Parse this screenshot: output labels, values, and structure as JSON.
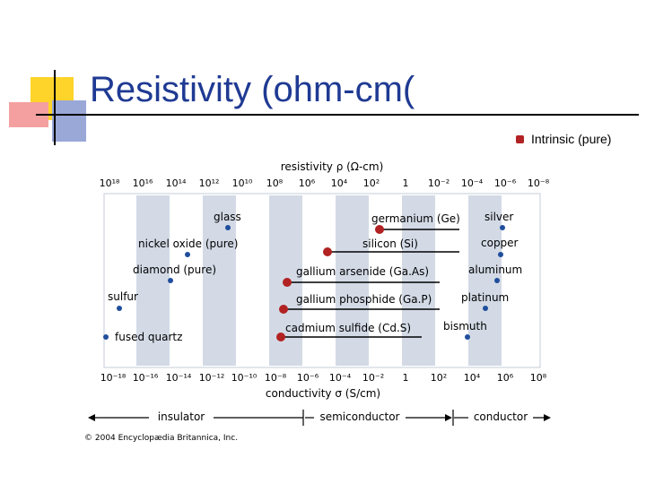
{
  "slide": {
    "title": "Resistivity (ohm-cm(",
    "bullet": "Intrinsic (pure)"
  },
  "figure": {
    "top_label": "resistivity ρ (Ω-cm)",
    "bottom_label": "conductivity σ (S/cm)",
    "top_ticks": [
      "10¹⁸",
      "10¹⁶",
      "10¹⁴",
      "10¹²",
      "10¹⁰",
      "10⁸",
      "10⁶",
      "10⁴",
      "10²",
      "1",
      "10⁻²",
      "10⁻⁴",
      "10⁻⁶",
      "10⁻⁸"
    ],
    "bottom_ticks": [
      "10⁻¹⁸",
      "10⁻¹⁶",
      "10⁻¹⁴",
      "10⁻¹²",
      "10⁻¹⁰",
      "10⁻⁸",
      "10⁻⁶",
      "10⁻⁴",
      "10⁻²",
      "1",
      "10²",
      "10⁴",
      "10⁶",
      "10⁸"
    ],
    "materials": [
      {
        "name": "glass",
        "type": "dot"
      },
      {
        "name": "nickel oxide (pure)",
        "type": "dot"
      },
      {
        "name": "diamond (pure)",
        "type": "dot"
      },
      {
        "name": "sulfur",
        "type": "dot"
      },
      {
        "name": "fused quartz",
        "type": "dot"
      },
      {
        "name": "germanium (Ge)",
        "type": "intrinsic"
      },
      {
        "name": "silicon (Si)",
        "type": "intrinsic"
      },
      {
        "name": "gallium arsenide (Ga.As)",
        "type": "intrinsic"
      },
      {
        "name": "gallium phosphide (Ga.P)",
        "type": "intrinsic"
      },
      {
        "name": "cadmium sulfide (Cd.S)",
        "type": "intrinsic"
      },
      {
        "name": "silver",
        "type": "dot"
      },
      {
        "name": "copper",
        "type": "dot"
      },
      {
        "name": "aluminum",
        "type": "dot"
      },
      {
        "name": "platinum",
        "type": "dot"
      },
      {
        "name": "bismuth",
        "type": "dot"
      }
    ],
    "classes": [
      "insulator",
      "semiconductor",
      "conductor"
    ],
    "copyright": "© 2004 Encyclopædia Britannica, Inc."
  },
  "colors": {
    "title": "#1f3a93",
    "band": "#d3dae6",
    "intrinsic": "#b22222",
    "dot": "#1f4e9c",
    "deco_yellow": "#ffd42a",
    "deco_red": "#f08080",
    "deco_blue": "#8a9cd6"
  }
}
